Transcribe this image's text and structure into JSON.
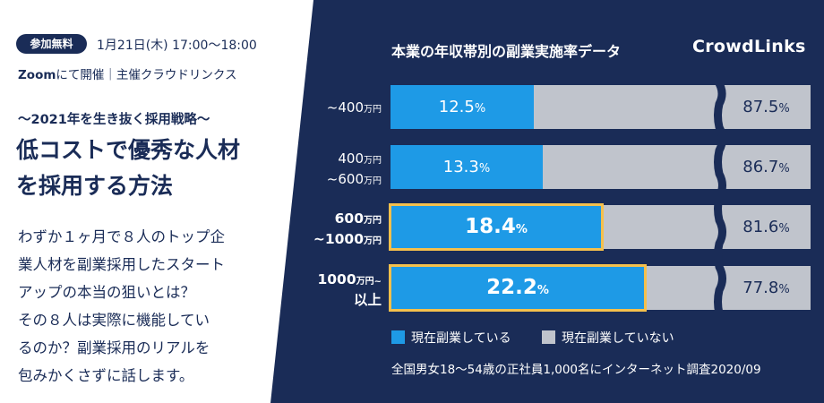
{
  "event": {
    "badge": "参加無料",
    "date": "1月21日(木) 17:00〜18:00",
    "host_zoom": "Zoom",
    "host_rest": "にて開催｜主催クラウドリンクス",
    "subtitle": "〜2021年を生き抜く採用戦略〜",
    "title_lines": [
      "低コストで優秀な人材",
      "を採用する方法"
    ],
    "description_lines": [
      "わずか１ヶ月で８人のトップ企",
      "業人材を副業採用したスタート",
      "アップの本当の狙いとは？",
      "その８人は実際に機能してい",
      "るのか？副業採用のリアルを",
      "包みかくさずに話します。"
    ]
  },
  "logo": "CrowdLinks",
  "colors": {
    "navy": "#1a2c57",
    "blue": "#1e9ae6",
    "gray": "#c0c4cc",
    "highlight": "#f5c04c"
  },
  "chart_data": {
    "type": "bar",
    "orientation": "horizontal",
    "stacked": true,
    "title": "本業の年収帯別の副業実施率データ",
    "categories": [
      {
        "lines": [
          {
            "text": "~400",
            "unit": "万円"
          }
        ],
        "bold": false
      },
      {
        "lines": [
          {
            "text": "400",
            "unit": "万円"
          },
          {
            "text": "~600",
            "unit": "万円"
          }
        ],
        "bold": false
      },
      {
        "lines": [
          {
            "text": "600",
            "unit": "万円"
          },
          {
            "text": "~1000",
            "unit": "万円"
          }
        ],
        "bold": true
      },
      {
        "lines": [
          {
            "text": "1000",
            "unit": "万円~"
          },
          {
            "text": "以上",
            "unit": ""
          }
        ],
        "bold": true
      }
    ],
    "series": [
      {
        "name": "現在副業している",
        "values": [
          12.5,
          13.3,
          18.4,
          22.2
        ],
        "labels": [
          "12.5",
          "13.3",
          "18.4",
          "22.2"
        ]
      },
      {
        "name": "現在副業していない",
        "values": [
          87.5,
          86.7,
          81.6,
          77.8
        ],
        "labels": [
          "87.5",
          "86.7",
          "81.6",
          "77.8"
        ]
      }
    ],
    "value_unit": "%",
    "highlighted": [
      false,
      false,
      true,
      true
    ],
    "axis_break": true,
    "grid": false,
    "legend_position": "bottom-left",
    "footnote": "全国男女18〜54歳の正社員1,000名にインターネット調査2020/09"
  }
}
